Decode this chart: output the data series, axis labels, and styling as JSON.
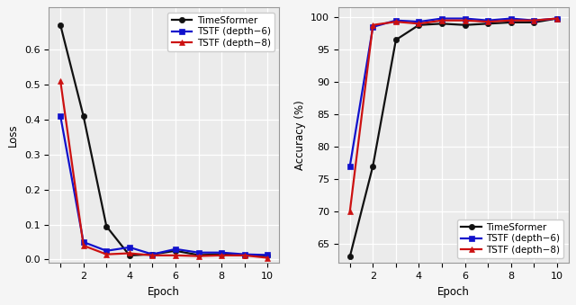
{
  "epochs": [
    1,
    2,
    3,
    4,
    5,
    6,
    7,
    8,
    9,
    10
  ],
  "loss": {
    "TimeSformer": [
      0.67,
      0.41,
      0.095,
      0.012,
      0.015,
      0.025,
      0.013,
      0.015,
      0.012,
      0.012
    ],
    "TSTF_d6": [
      0.41,
      0.05,
      0.025,
      0.035,
      0.015,
      0.03,
      0.02,
      0.02,
      0.015,
      0.013
    ],
    "TSTF_d8": [
      0.51,
      0.04,
      0.015,
      0.018,
      0.012,
      0.012,
      0.01,
      0.012,
      0.012,
      0.005
    ]
  },
  "accuracy": {
    "TimeSformer": [
      63.0,
      77.0,
      96.5,
      98.8,
      99.0,
      98.8,
      99.0,
      99.2,
      99.2,
      99.8
    ],
    "TSTF_d6": [
      77.0,
      98.5,
      99.5,
      99.3,
      99.8,
      99.8,
      99.5,
      99.8,
      99.5,
      99.8
    ],
    "TSTF_d8": [
      70.0,
      98.8,
      99.3,
      99.0,
      99.5,
      99.5,
      99.3,
      99.5,
      99.5,
      99.8
    ]
  },
  "colors": {
    "TimeSformer": "#111111",
    "TSTF_d6": "#1111cc",
    "TSTF_d8": "#cc1111"
  },
  "labels": {
    "TimeSformer": "TimeSformer",
    "TSTF_d6": "TSTF (depth−6)",
    "TSTF_d8": "TSTF (depth−8)"
  },
  "loss_ylim": [
    -0.01,
    0.72
  ],
  "acc_ylim": [
    62,
    101.5
  ],
  "xticks": [
    1,
    2,
    3,
    4,
    5,
    6,
    7,
    8,
    9,
    10
  ],
  "xtick_labels": [
    "",
    "2",
    "",
    "4",
    "",
    "6",
    "",
    "8",
    "",
    "10"
  ],
  "loss_yticks": [
    0.0,
    0.1,
    0.2,
    0.3,
    0.4,
    0.5,
    0.6
  ],
  "acc_yticks": [
    65,
    70,
    75,
    80,
    85,
    90,
    95,
    100
  ],
  "xlabel": "Epoch",
  "ylabel_loss": "Loss",
  "ylabel_acc": "Accuracy (%)",
  "bg_color": "#ebebeb",
  "grid_color": "#ffffff",
  "fig_color": "#f5f5f5",
  "font_size": 8.5,
  "legend_fontsize": 7.5,
  "tick_fontsize": 8.0,
  "linewidth": 1.6,
  "markersize": 4.5
}
